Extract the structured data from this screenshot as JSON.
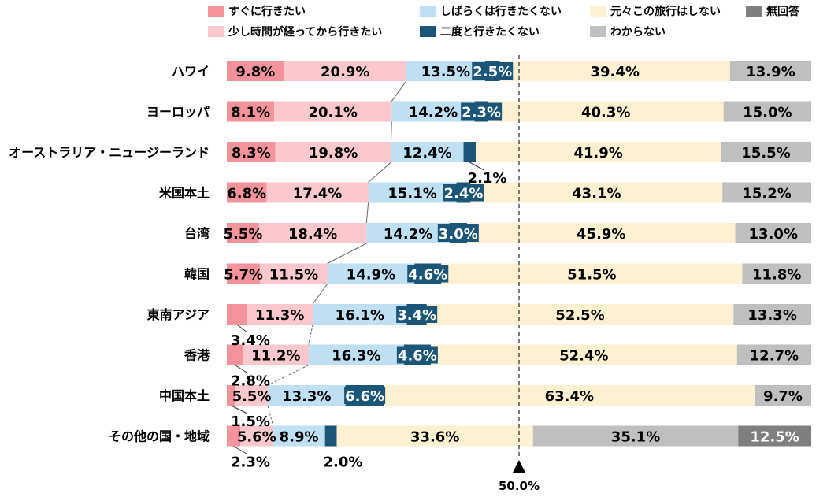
{
  "chart_data": {
    "type": "bar",
    "orientation": "horizontal",
    "stacked": true,
    "categories": [
      "ハワイ",
      "ヨーロッパ",
      "オーストラリア・ニュージーランド",
      "米国本土",
      "台湾",
      "韓国",
      "東南アジア",
      "香港",
      "中国本土",
      "その他の国・地域"
    ],
    "series": [
      {
        "name": "すぐに行きたい",
        "color": "#f4939b",
        "values": [
          9.8,
          8.1,
          8.3,
          6.8,
          5.5,
          5.7,
          3.4,
          2.8,
          1.5,
          2.3
        ]
      },
      {
        "name": "少し時間が経ってから行きたい",
        "color": "#fbc9cd",
        "values": [
          20.9,
          20.1,
          19.8,
          17.4,
          18.4,
          11.5,
          11.3,
          11.2,
          5.5,
          5.6
        ]
      },
      {
        "name": "しばらくは行きたくない",
        "color": "#bfdff3",
        "values": [
          13.5,
          14.2,
          12.4,
          15.1,
          14.2,
          14.9,
          16.1,
          16.3,
          13.3,
          8.9
        ]
      },
      {
        "name": "二度と行きたくない",
        "color": "#1b5577",
        "values": [
          2.5,
          2.3,
          2.1,
          2.4,
          3.0,
          4.6,
          3.4,
          4.6,
          6.6,
          2.0
        ]
      },
      {
        "name": "元々この旅行はしない",
        "color": "#fdf1d2",
        "values": [
          39.4,
          40.3,
          41.9,
          43.1,
          45.9,
          51.5,
          52.5,
          52.4,
          63.4,
          33.6
        ]
      },
      {
        "name": "わからない",
        "color": "#bfbfbf",
        "values": [
          13.9,
          15.0,
          15.5,
          15.2,
          13.0,
          11.8,
          13.3,
          12.7,
          9.7,
          35.1
        ]
      },
      {
        "name": "無回答",
        "color": "#7f7f7f",
        "values": [
          0,
          0,
          0,
          0,
          0,
          0,
          0,
          0,
          0,
          12.5
        ]
      }
    ],
    "labels": [
      [
        "9.8%",
        "20.9%",
        "13.5%",
        "2.5%",
        "39.4%",
        "13.9%",
        ""
      ],
      [
        "8.1%",
        "20.1%",
        "14.2%",
        "2.3%",
        "40.3%",
        "15.0%",
        ""
      ],
      [
        "8.3%",
        "19.8%",
        "12.4%",
        "2.1%",
        "41.9%",
        "15.5%",
        ""
      ],
      [
        "6.8%",
        "17.4%",
        "15.1%",
        "2.4%",
        "43.1%",
        "15.2%",
        ""
      ],
      [
        "5.5%",
        "18.4%",
        "14.2%",
        "3.0%",
        "45.9%",
        "13.0%",
        ""
      ],
      [
        "5.7%",
        "11.5%",
        "14.9%",
        "4.6%",
        "51.5%",
        "11.8%",
        ""
      ],
      [
        "3.4%",
        "11.3%",
        "16.1%",
        "3.4%",
        "52.5%",
        "13.3%",
        ""
      ],
      [
        "2.8%",
        "11.2%",
        "16.3%",
        "4.6%",
        "52.4%",
        "12.7%",
        ""
      ],
      [
        "1.5%",
        "5.5%",
        "13.3%",
        "6.6%",
        "63.4%",
        "9.7%",
        ""
      ],
      [
        "2.3%",
        "5.6%",
        "8.9%",
        "2.0%",
        "33.6%",
        "35.1%",
        "12.5%"
      ]
    ],
    "reference_label": "50.0%",
    "xlim": [
      0,
      100
    ],
    "legend_position": "top"
  }
}
